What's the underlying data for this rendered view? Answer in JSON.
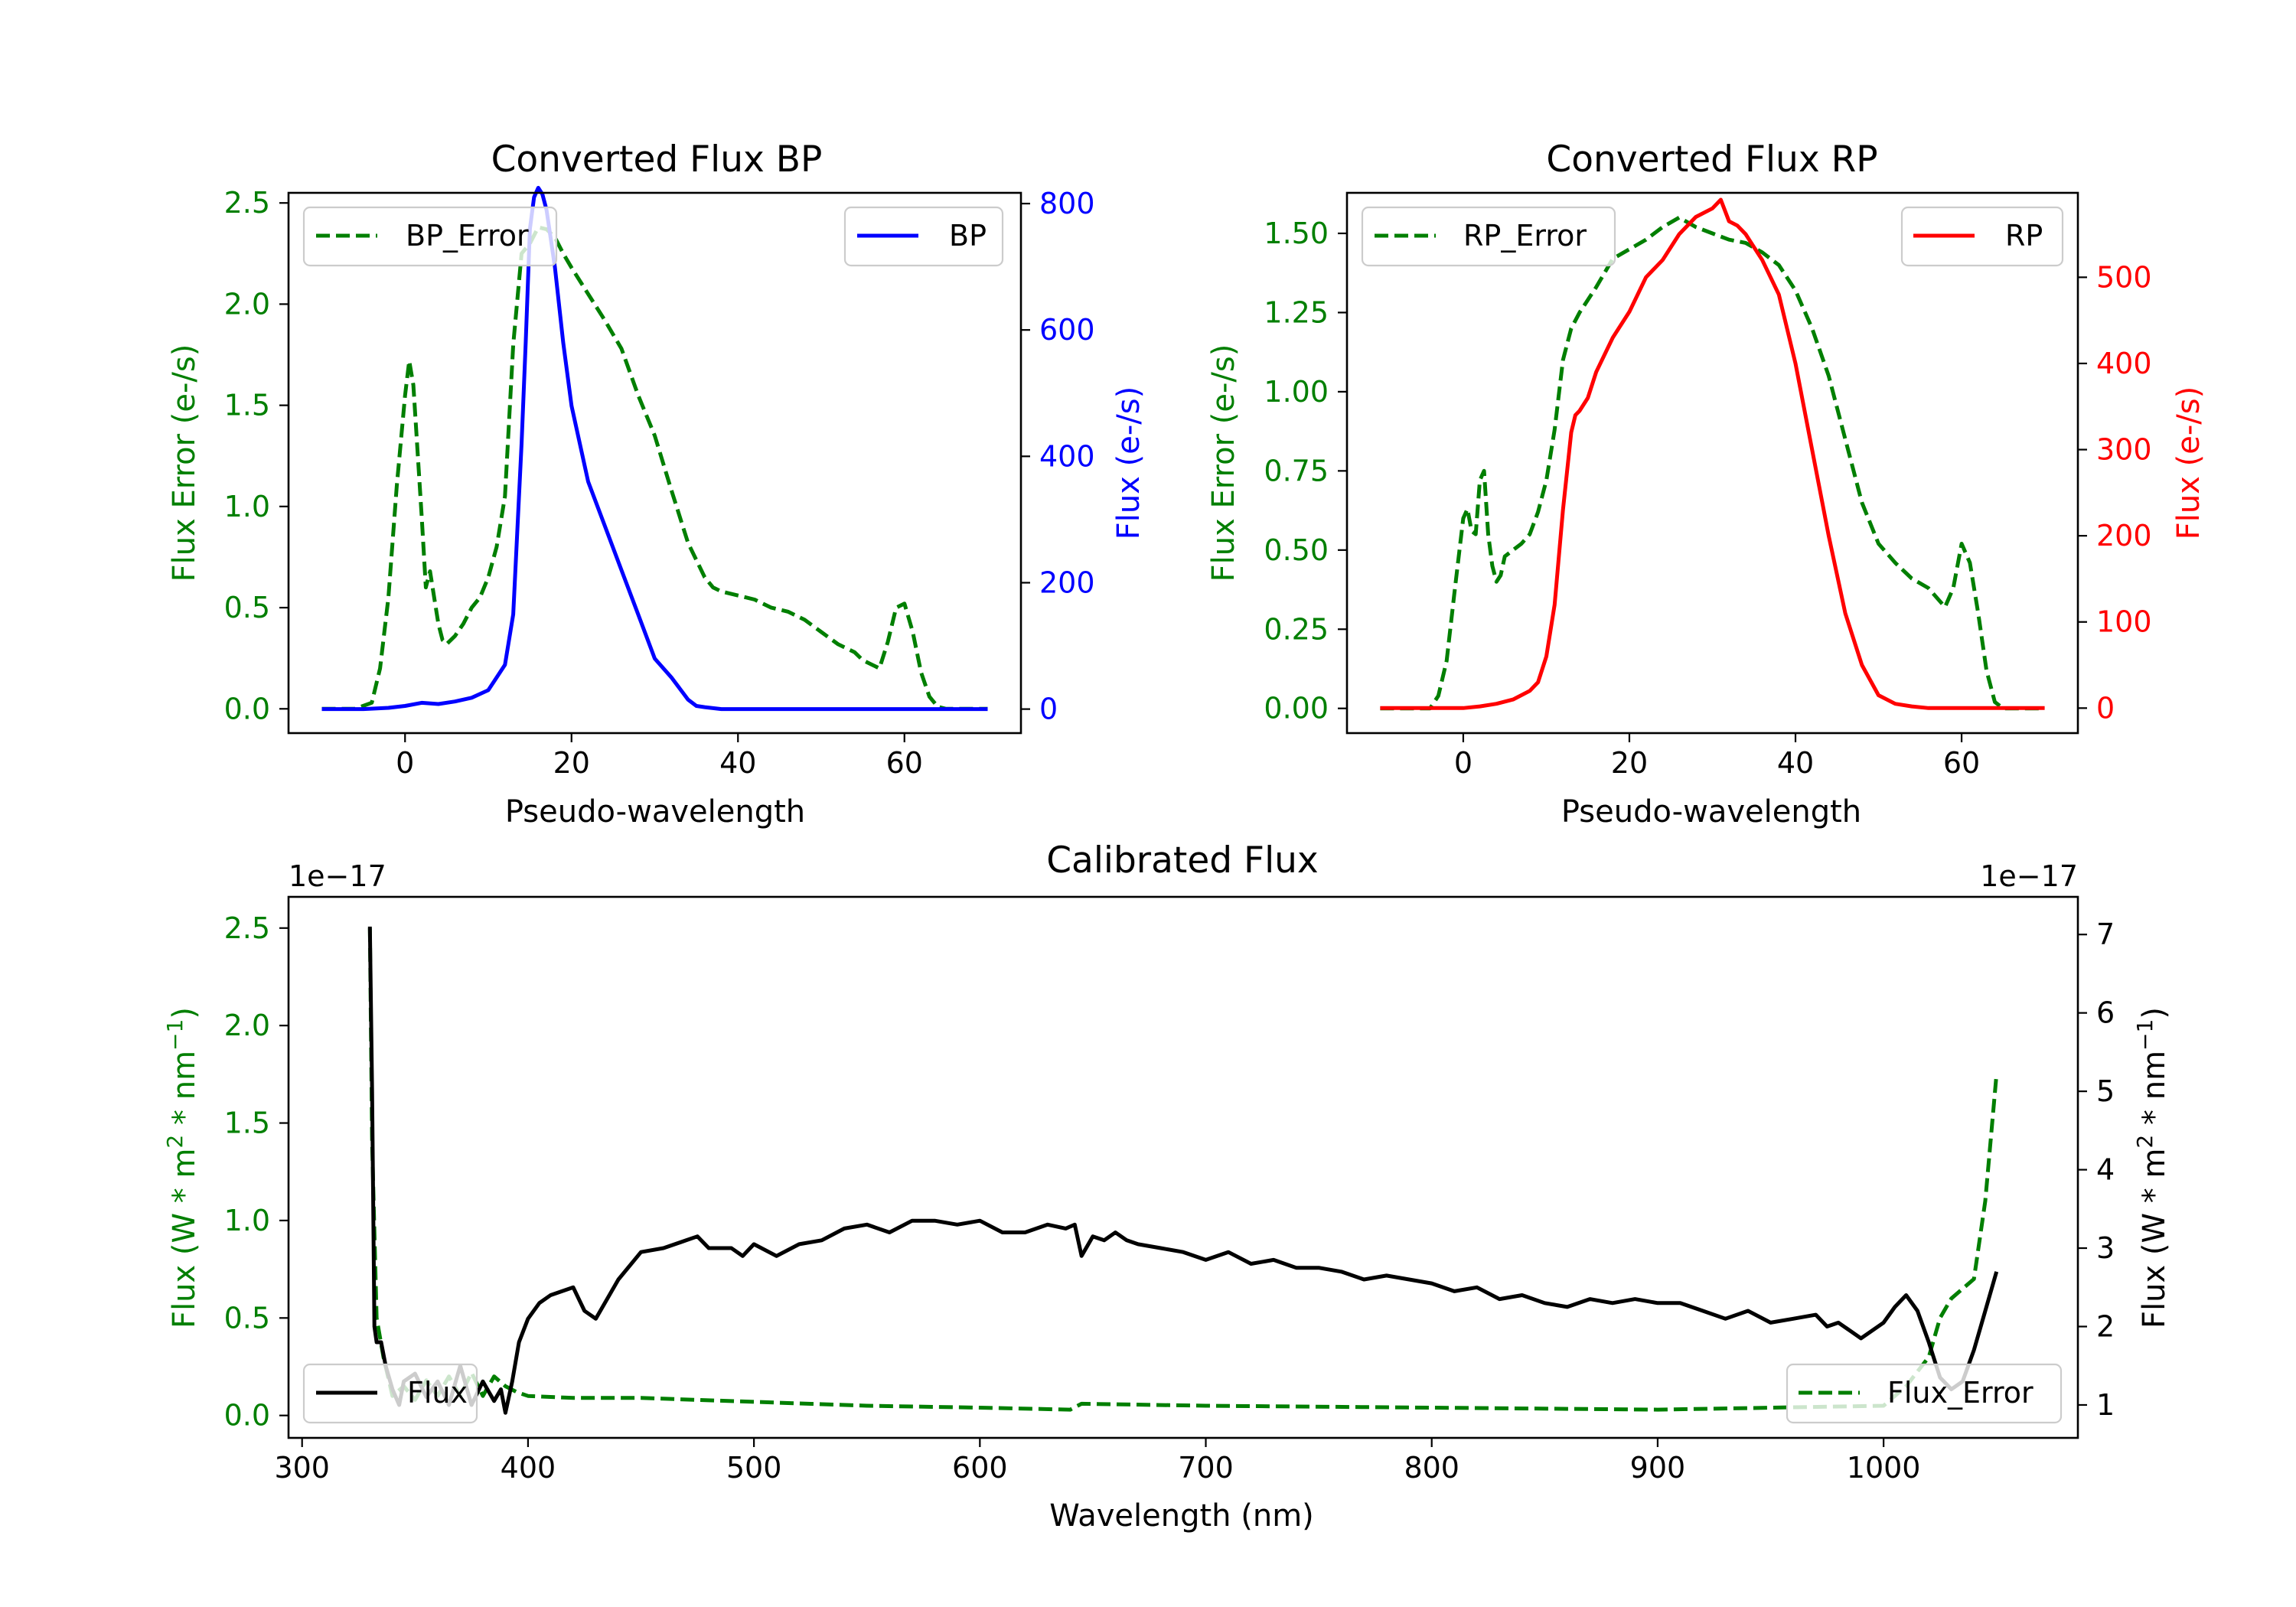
{
  "colors": {
    "green": "#007f00",
    "blue": "#0000ff",
    "red": "#ff0000",
    "black": "#000000"
  },
  "chart_data": [
    {
      "type": "line",
      "title": "Converted Flux BP",
      "xlabel": "Pseudo-wavelength",
      "ylabel_left": "Flux Error (e-/s)",
      "ylabel_right": "Flux (e-/s)",
      "xlim": [
        -14,
        74
      ],
      "ylim_left": [
        -0.12,
        2.55
      ],
      "ylim_right": [
        -38,
        817
      ],
      "xticks": [
        0,
        20,
        40,
        60
      ],
      "yticks_left": [
        "0.0",
        "0.5",
        "1.0",
        "1.5",
        "2.0",
        "2.5"
      ],
      "yticks_right": [
        "0",
        "200",
        "400",
        "600",
        "800"
      ],
      "legend_left": "BP_Error",
      "legend_right": "BP",
      "series": [
        {
          "name": "BP_Error",
          "axis": "left",
          "color": "#007f00",
          "dash": true,
          "x": [
            -10,
            -6,
            -4,
            -3,
            -2,
            -1,
            0,
            0.5,
            1,
            2,
            2.5,
            3,
            3.5,
            4,
            4.5,
            5,
            6,
            7,
            8,
            9,
            10,
            11,
            12,
            13,
            14,
            15,
            16,
            17,
            18,
            19,
            20,
            22,
            24,
            26,
            28,
            30,
            32,
            34,
            36,
            37,
            38,
            40,
            42,
            44,
            46,
            48,
            50,
            52,
            54,
            55,
            56,
            57,
            58,
            59,
            60,
            61,
            62,
            63,
            64,
            65,
            66,
            68,
            70
          ],
          "y": [
            0,
            0,
            0.03,
            0.2,
            0.55,
            1.1,
            1.55,
            1.72,
            1.6,
            0.95,
            0.6,
            0.68,
            0.55,
            0.42,
            0.34,
            0.32,
            0.36,
            0.42,
            0.5,
            0.55,
            0.65,
            0.8,
            1.05,
            1.8,
            2.25,
            2.3,
            2.38,
            2.37,
            2.33,
            2.25,
            2.18,
            2.05,
            1.92,
            1.78,
            1.55,
            1.35,
            1.08,
            0.82,
            0.65,
            0.6,
            0.58,
            0.56,
            0.54,
            0.5,
            0.48,
            0.44,
            0.38,
            0.32,
            0.28,
            0.24,
            0.22,
            0.2,
            0.33,
            0.5,
            0.52,
            0.38,
            0.18,
            0.06,
            0.01,
            0,
            0,
            0,
            0
          ]
        },
        {
          "name": "BP",
          "axis": "right",
          "color": "#0000ff",
          "dash": false,
          "x": [
            -10,
            -5,
            -2,
            0,
            2,
            4,
            6,
            8,
            10,
            12,
            13,
            14,
            14.5,
            15,
            15.5,
            16,
            16.5,
            17,
            18,
            19,
            20,
            22,
            24,
            26,
            28,
            30,
            32,
            34,
            35,
            36,
            38,
            40,
            45,
            50,
            55,
            60,
            65,
            70
          ],
          "y": [
            0,
            0,
            2,
            5,
            10,
            8,
            12,
            18,
            30,
            70,
            150,
            420,
            580,
            760,
            810,
            825,
            815,
            790,
            700,
            580,
            480,
            360,
            290,
            220,
            150,
            80,
            50,
            15,
            5,
            3,
            0,
            0,
            0,
            0,
            0,
            0,
            0,
            0
          ]
        }
      ]
    },
    {
      "type": "line",
      "title": "Converted Flux RP",
      "xlabel": "Pseudo-wavelength",
      "ylabel_left": "Flux Error (e-/s)",
      "ylabel_right": "Flux (e-/s)",
      "xlim": [
        -14,
        74
      ],
      "ylim_left": [
        -0.078,
        1.628
      ],
      "ylim_right": [
        -29,
        598
      ],
      "xticks": [
        0,
        20,
        40,
        60
      ],
      "yticks_left": [
        "0.00",
        "0.25",
        "0.50",
        "0.75",
        "1.00",
        "1.25",
        "1.50"
      ],
      "yticks_right": [
        "0",
        "100",
        "200",
        "300",
        "400",
        "500"
      ],
      "legend_left": "RP_Error",
      "legend_right": "RP",
      "series": [
        {
          "name": "RP_Error",
          "axis": "left",
          "color": "#007f00",
          "dash": true,
          "x": [
            -10,
            -4,
            -3,
            -2,
            -1,
            0,
            0.5,
            1,
            1.5,
            2,
            2.5,
            3,
            3.5,
            4,
            4.5,
            5,
            6,
            7,
            8,
            9,
            10,
            11,
            12,
            13,
            14,
            16,
            18,
            20,
            22,
            24,
            26,
            28,
            30,
            32,
            34,
            36,
            38,
            40,
            42,
            44,
            46,
            48,
            50,
            52,
            54,
            56,
            57,
            58,
            59,
            60,
            61,
            62,
            63,
            64,
            65,
            70
          ],
          "y": [
            0,
            0,
            0.04,
            0.15,
            0.38,
            0.6,
            0.63,
            0.56,
            0.55,
            0.72,
            0.75,
            0.55,
            0.45,
            0.4,
            0.42,
            0.48,
            0.5,
            0.52,
            0.55,
            0.62,
            0.72,
            0.88,
            1.1,
            1.2,
            1.25,
            1.33,
            1.42,
            1.45,
            1.48,
            1.52,
            1.55,
            1.52,
            1.5,
            1.48,
            1.47,
            1.44,
            1.4,
            1.32,
            1.2,
            1.05,
            0.85,
            0.65,
            0.52,
            0.46,
            0.41,
            0.38,
            0.35,
            0.32,
            0.38,
            0.52,
            0.46,
            0.3,
            0.12,
            0.02,
            0,
            0
          ]
        },
        {
          "name": "RP",
          "axis": "right",
          "color": "#ff0000",
          "dash": false,
          "x": [
            -10,
            -2,
            0,
            2,
            4,
            6,
            8,
            9,
            10,
            11,
            12,
            13,
            13.5,
            14,
            15,
            16,
            18,
            20,
            22,
            24,
            26,
            28,
            30,
            31,
            32,
            33,
            34,
            36,
            38,
            40,
            42,
            44,
            46,
            48,
            50,
            52,
            54,
            56,
            60,
            65,
            70
          ],
          "y": [
            0,
            0,
            0,
            2,
            5,
            10,
            20,
            30,
            60,
            120,
            230,
            320,
            340,
            345,
            360,
            390,
            430,
            460,
            500,
            520,
            550,
            570,
            580,
            590,
            565,
            560,
            550,
            520,
            480,
            400,
            300,
            200,
            110,
            50,
            15,
            5,
            2,
            0,
            0,
            0,
            0
          ]
        }
      ]
    },
    {
      "type": "line",
      "title": "Calibrated Flux",
      "xlabel": "Wavelength (nm)",
      "ylabel_left": "Flux (W * m² * nm⁻¹)",
      "ylabel_right": "Flux (W * m² * nm⁻¹)",
      "ylabel_left_main": "Flux (W * m",
      "ylabel_left_mid": " * nm",
      "ylabel_left_end": ")",
      "ylabel_sup1": "2",
      "ylabel_sup2": "−1",
      "scale_left": "1e−17",
      "scale_right": "1e−17",
      "xlim": [
        294,
        1086
      ],
      "ylim_left": [
        -0.115,
        2.66
      ],
      "ylim_right": [
        0.58,
        7.48
      ],
      "xticks": [
        300,
        400,
        500,
        600,
        700,
        800,
        900,
        1000
      ],
      "yticks_left": [
        "0.0",
        "0.5",
        "1.0",
        "1.5",
        "2.0",
        "2.5"
      ],
      "yticks_right": [
        "1",
        "2",
        "3",
        "4",
        "5",
        "6",
        "7"
      ],
      "legend_left": "Flux",
      "legend_right": "Flux_Error",
      "series": [
        {
          "name": "Flux_Error",
          "axis": "left",
          "color": "#007f00",
          "dash": true,
          "x": [
            330,
            331,
            333,
            336,
            340,
            345,
            350,
            355,
            360,
            365,
            370,
            375,
            380,
            385,
            390,
            395,
            400,
            420,
            450,
            500,
            550,
            600,
            640,
            645,
            700,
            800,
            900,
            1000,
            1010,
            1020,
            1025,
            1030,
            1035,
            1040,
            1045,
            1050
          ],
          "y": [
            2.5,
            1.4,
            0.5,
            0.3,
            0.1,
            0.15,
            0.08,
            0.18,
            0.1,
            0.2,
            0.1,
            0.22,
            0.1,
            0.2,
            0.15,
            0.12,
            0.1,
            0.09,
            0.09,
            0.07,
            0.05,
            0.04,
            0.03,
            0.06,
            0.05,
            0.04,
            0.03,
            0.05,
            0.15,
            0.3,
            0.5,
            0.6,
            0.65,
            0.7,
            1.1,
            1.75
          ]
        },
        {
          "name": "Flux",
          "axis": "right",
          "color": "#000000",
          "dash": false,
          "x": [
            330,
            331,
            332,
            333,
            335,
            337,
            340,
            343,
            345,
            350,
            355,
            360,
            365,
            370,
            375,
            380,
            385,
            388,
            390,
            393,
            396,
            400,
            405,
            410,
            420,
            425,
            430,
            440,
            450,
            460,
            470,
            475,
            480,
            490,
            495,
            500,
            510,
            520,
            530,
            540,
            550,
            560,
            570,
            580,
            590,
            600,
            610,
            620,
            630,
            638,
            642,
            645,
            650,
            655,
            660,
            665,
            670,
            680,
            690,
            700,
            710,
            720,
            730,
            740,
            750,
            760,
            770,
            780,
            790,
            800,
            810,
            820,
            830,
            840,
            850,
            860,
            870,
            880,
            890,
            900,
            910,
            920,
            930,
            940,
            950,
            960,
            970,
            975,
            980,
            990,
            1000,
            1005,
            1010,
            1015,
            1020,
            1025,
            1030,
            1035,
            1040,
            1045,
            1050
          ],
          "y": [
            7.1,
            5.0,
            2.0,
            1.8,
            1.8,
            1.5,
            1.2,
            1.0,
            1.3,
            1.4,
            1.1,
            1.3,
            1.0,
            1.5,
            1.0,
            1.3,
            1.05,
            1.2,
            0.9,
            1.3,
            1.8,
            2.1,
            2.3,
            2.4,
            2.5,
            2.2,
            2.1,
            2.6,
            2.95,
            3.0,
            3.1,
            3.15,
            3.0,
            3.0,
            2.9,
            3.05,
            2.9,
            3.05,
            3.1,
            3.25,
            3.3,
            3.2,
            3.35,
            3.35,
            3.3,
            3.35,
            3.2,
            3.2,
            3.3,
            3.25,
            3.3,
            2.9,
            3.15,
            3.1,
            3.2,
            3.1,
            3.05,
            3.0,
            2.95,
            2.85,
            2.95,
            2.8,
            2.85,
            2.75,
            2.75,
            2.7,
            2.6,
            2.65,
            2.6,
            2.55,
            2.45,
            2.5,
            2.35,
            2.4,
            2.3,
            2.25,
            2.35,
            2.3,
            2.35,
            2.3,
            2.3,
            2.2,
            2.1,
            2.2,
            2.05,
            2.1,
            2.15,
            2.0,
            2.05,
            1.85,
            2.05,
            2.25,
            2.4,
            2.2,
            1.8,
            1.35,
            1.2,
            1.3,
            1.7,
            2.2,
            2.7
          ]
        }
      ]
    }
  ]
}
